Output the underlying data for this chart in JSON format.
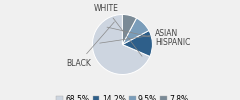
{
  "labels": [
    "WHITE",
    "ASIAN",
    "HISPANIC",
    "BLACK"
  ],
  "values": [
    68.5,
    14.2,
    9.5,
    7.8
  ],
  "colors": [
    "#cdd5e0",
    "#2e5f8a",
    "#7a9dba",
    "#7a8a96"
  ],
  "legend_labels": [
    "68.5%",
    "14.2%",
    "9.5%",
    "7.8%"
  ],
  "startangle": 90,
  "fontsize_labels": 5.5,
  "fontsize_legend": 5.5,
  "bg_color": "#f0f0f0"
}
